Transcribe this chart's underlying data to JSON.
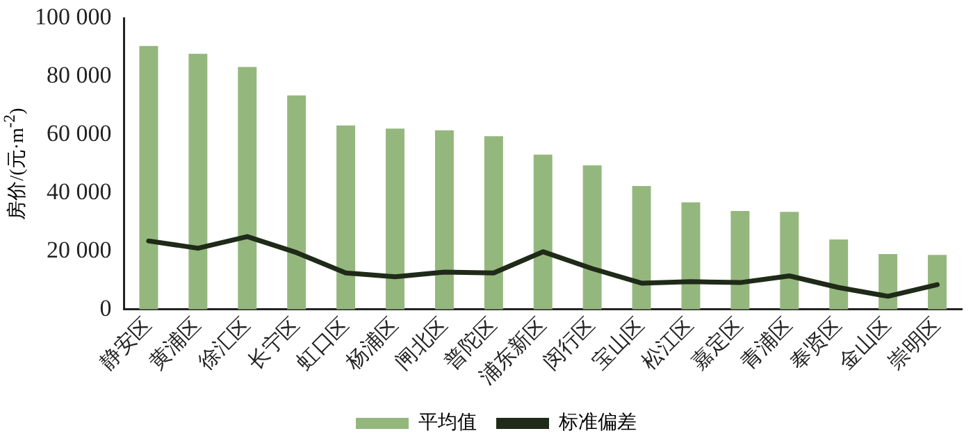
{
  "chart_data": {
    "type": "bar",
    "ylabel": "房价/(元·m$^{-2}$)",
    "categories": [
      "静安区",
      "黄浦区",
      "徐汇区",
      "长宁区",
      "虹口区",
      "杨浦区",
      "闸北区",
      "普陀区",
      "浦东新区",
      "闵行区",
      "宝山区",
      "松江区",
      "嘉定区",
      "青浦区",
      "奉贤区",
      "金山区",
      "崇明区"
    ],
    "series": [
      {
        "name": "平均值",
        "color": "#94b77e",
        "values": [
          90500,
          87800,
          83300,
          73500,
          63200,
          62100,
          61500,
          59500,
          53200,
          49500,
          42400,
          36800,
          33800,
          33500,
          24000,
          19000,
          18700
        ]
      },
      {
        "name": "标准偏差",
        "type": "line",
        "color": "#1f2a18",
        "values": [
          23500,
          21000,
          25000,
          19500,
          12500,
          11200,
          12800,
          12500,
          19800,
          14000,
          9000,
          9500,
          9200,
          11500,
          7500,
          4500,
          8500
        ]
      }
    ],
    "ylim": [
      0,
      100000
    ],
    "yticks": [
      {
        "value": 0,
        "label": "0"
      },
      {
        "value": 20000,
        "label": "20 000"
      },
      {
        "value": 40000,
        "label": "40 000"
      },
      {
        "value": 60000,
        "label": "60 000"
      },
      {
        "value": 80000,
        "label": "80 000"
      },
      {
        "value": 100000,
        "label": "100 000"
      }
    ],
    "grid": false,
    "legend": "bottom",
    "marker": "none",
    "line_style": "solid"
  }
}
